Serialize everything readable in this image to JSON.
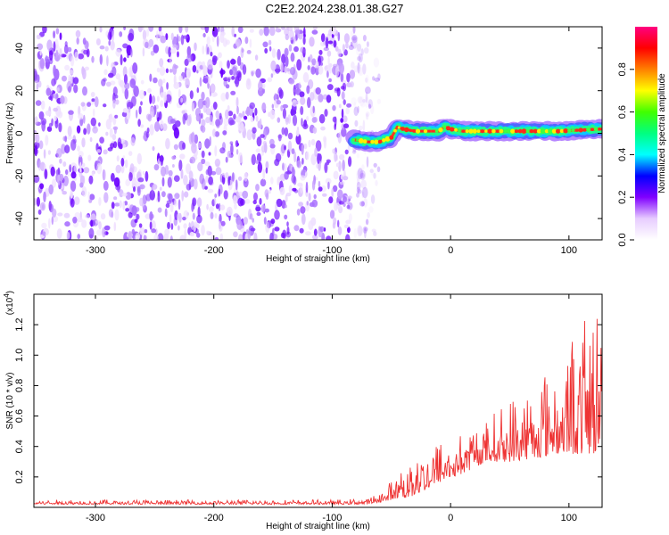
{
  "title": "C2E2.2024.238.01.38.G27",
  "chart_data": [
    {
      "type": "heatmap",
      "xlabel": "Height of straight line (km)",
      "ylabel": "Frequency (Hz)",
      "xlim": [
        -352,
        128
      ],
      "ylim": [
        -50,
        50
      ],
      "xticks": [
        -300,
        -200,
        -100,
        0,
        100
      ],
      "yticks": [
        -40,
        -20,
        0,
        20,
        40
      ],
      "colorbar": {
        "label": "Normalized spectral amplitude",
        "range": [
          0,
          1
        ],
        "ticks": [
          0.0,
          0.2,
          0.4,
          0.6,
          0.8
        ],
        "colors": [
          "#ffffff",
          "#e7ccff",
          "#8000ff",
          "#0000ff",
          "#00ffff",
          "#00ff80",
          "#40ff00",
          "#ffff00",
          "#ff8000",
          "#ff0000",
          "#ff0080"
        ]
      },
      "noise_region_x": [
        -352,
        -70
      ],
      "signal_track": [
        {
          "x": -82,
          "y": -3
        },
        {
          "x": -70,
          "y": -4
        },
        {
          "x": -60,
          "y": -4
        },
        {
          "x": -50,
          "y": -2
        },
        {
          "x": -45,
          "y": 3
        },
        {
          "x": -40,
          "y": 2
        },
        {
          "x": -30,
          "y": 1
        },
        {
          "x": -20,
          "y": 1
        },
        {
          "x": -10,
          "y": 1
        },
        {
          "x": -5,
          "y": 3
        },
        {
          "x": 0,
          "y": 2
        },
        {
          "x": 10,
          "y": 1
        },
        {
          "x": 30,
          "y": 1
        },
        {
          "x": 60,
          "y": 1
        },
        {
          "x": 90,
          "y": 1
        },
        {
          "x": 128,
          "y": 2
        }
      ]
    },
    {
      "type": "line",
      "xlabel": "Height of straight line (km)",
      "ylabel": "SNR (10 * v/v)",
      "yscale_label": "(x10",
      "yscale_exp": "4",
      "yscale_close": ")",
      "xlim": [
        -352,
        128
      ],
      "ylim": [
        0,
        1.4
      ],
      "xticks": [
        -300,
        -200,
        -100,
        0,
        100
      ],
      "yticks": [
        0.2,
        0.4,
        0.6,
        0.8,
        1.0,
        1.2
      ],
      "color": "#ee3333",
      "envelope": [
        {
          "x": -352,
          "base": 0.02,
          "peak": 0.05
        },
        {
          "x": -100,
          "base": 0.02,
          "peak": 0.05
        },
        {
          "x": -70,
          "base": 0.02,
          "peak": 0.06
        },
        {
          "x": -55,
          "base": 0.04,
          "peak": 0.12
        },
        {
          "x": -45,
          "base": 0.06,
          "peak": 0.25
        },
        {
          "x": -33,
          "base": 0.06,
          "peak": 0.45
        },
        {
          "x": -20,
          "base": 0.12,
          "peak": 0.4
        },
        {
          "x": -5,
          "base": 0.18,
          "peak": 0.45
        },
        {
          "x": 10,
          "base": 0.22,
          "peak": 0.5
        },
        {
          "x": 30,
          "base": 0.3,
          "peak": 0.58
        },
        {
          "x": 50,
          "base": 0.3,
          "peak": 0.72
        },
        {
          "x": 70,
          "base": 0.32,
          "peak": 0.82
        },
        {
          "x": 90,
          "base": 0.35,
          "peak": 1.05
        },
        {
          "x": 110,
          "base": 0.35,
          "peak": 1.2
        },
        {
          "x": 128,
          "base": 0.35,
          "peak": 1.38
        }
      ]
    }
  ]
}
